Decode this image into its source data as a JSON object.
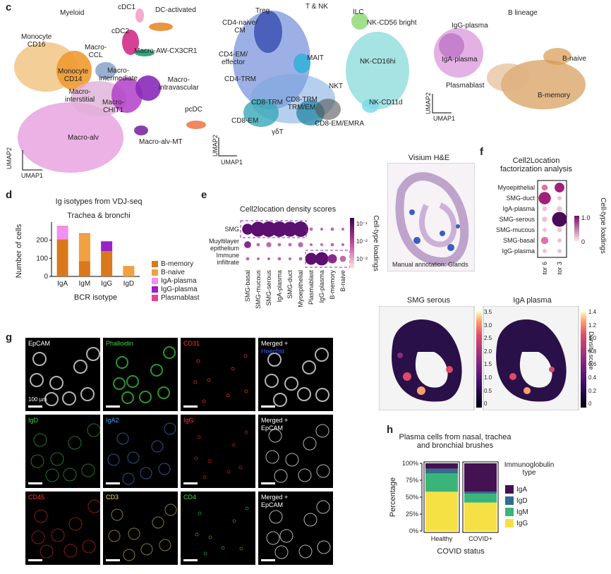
{
  "panel_c": {
    "letter": "c",
    "myeloid": {
      "title": "Myeloid",
      "labels": [
        "cDC1",
        "DC-activated",
        "cDC2",
        "Monocyte\nCD16",
        "Macro-\nCCL",
        "Macro-AW-CX3CR1",
        "Monocyte\nCD14",
        "Macro-\nintermediate",
        "Macro-\nintravascular",
        "Macro-\ninterstitial",
        "Macro-\nCHIT1",
        "pcDC",
        "Macro-alv",
        "Macro-alv-MT"
      ],
      "axis_x": "UMAP1",
      "axis_y": "UMAP2"
    },
    "tnk": {
      "title": "T & NK",
      "labels": [
        "Treg",
        "ILC",
        "CD4-naive/\nCM",
        "NK-CD56 bright",
        "CD4-EM/\neffector",
        "MAIT",
        "NK-CD16hi",
        "CD4-TRM",
        "NKT",
        "CD8-TRM",
        "CD8-TRM\nTRM/EM",
        "NK-CD11d",
        "CD8-EM",
        "γδT",
        "CD8-EM/EMRA"
      ],
      "axis_x": "UMAP1",
      "axis_y": "UMAP2"
    },
    "blineage": {
      "title": "B lineage",
      "labels": [
        "IgG-plasma",
        "IgA-plasma",
        "B-naive",
        "Plasmablast",
        "B-memory"
      ],
      "axis_x": "UMAP1",
      "axis_y": "UMAP2"
    }
  },
  "panel_d": {
    "letter": "d",
    "chart_data": {
      "type": "bar",
      "title": "Ig isotypes from VDJ-seq",
      "subtitle": "Trachea & bronchi",
      "xlabel": "BCR isotype",
      "ylabel": "Number of cells",
      "categories": [
        "IgA",
        "IgM",
        "IgG",
        "IgD"
      ],
      "ylim": [
        0,
        280
      ],
      "yticks": [
        0,
        100,
        200
      ],
      "series": [
        {
          "name": "B-memory",
          "color": "#d9791c",
          "values": [
            205,
            85,
            140,
            0
          ]
        },
        {
          "name": "B-naive",
          "color": "#f0a142",
          "values": [
            0,
            150,
            0,
            58
          ]
        },
        {
          "name": "IgA-plasma",
          "color": "#f38ff0",
          "values": [
            70,
            0,
            0,
            0
          ]
        },
        {
          "name": "IgG-plasma",
          "color": "#9a20c9",
          "values": [
            0,
            0,
            52,
            0
          ]
        },
        {
          "name": "Plasmablast",
          "color": "#e0439b",
          "values": [
            3,
            3,
            3,
            0
          ]
        }
      ]
    }
  },
  "panel_e": {
    "letter": "e",
    "chart_data": {
      "type": "dotplot",
      "title": "Cell2location density scores",
      "rows": [
        "SMG",
        "Muyltilayer\nepithelium",
        "Immune\ninfiltrate"
      ],
      "columns": [
        "SMG-basal",
        "SMG-mucous",
        "SMG-serous",
        "IgA-plasma",
        "SMG-duct",
        "Myoepithelial",
        "Plasmablast",
        "IgG-plasma",
        "B-memory",
        "B-naive"
      ],
      "values": [
        [
          0.02,
          0.1,
          0.12,
          0.12,
          0.1,
          0.12,
          0.001,
          0.0008,
          0.001,
          0.0008
        ],
        [
          0.004,
          0.001,
          0.002,
          0.001,
          0.001,
          0.002,
          0.0008,
          0.0008,
          0.001,
          0.0008
        ],
        [
          0.001,
          0.0008,
          0.0008,
          0.001,
          0.0008,
          0.001,
          0.03,
          0.05,
          0.01,
          0.003
        ]
      ],
      "colorbar": {
        "label": "Cell-type loadings",
        "ticks": [
          "10⁻¹",
          "10⁻²",
          "10⁻³"
        ]
      }
    }
  },
  "panel_visium": {
    "title": "Visium H&E",
    "caption": "Manual annotation: Glands"
  },
  "panel_f": {
    "letter": "f",
    "chart_data": {
      "type": "dotplot",
      "title": "Cell2Location\nfactorization analysis",
      "rows": [
        "Myoepithelial",
        "SMG-duct",
        "IgA-plasma",
        "SMG-serous",
        "SMG-mucous",
        "SMG-basal",
        "IgG-plasma"
      ],
      "columns": [
        "Factor 6",
        "Factor 3"
      ],
      "values": [
        [
          0.25,
          0.55
        ],
        [
          0.75,
          0.12
        ],
        [
          0.15,
          0.2
        ],
        [
          0.2,
          0.95
        ],
        [
          0.1,
          0.15
        ],
        [
          0.35,
          0.12
        ],
        [
          0.1,
          0.1
        ]
      ],
      "colorbar": {
        "label": "Cell-type loadings",
        "ticks": [
          "1.0",
          "0"
        ]
      }
    }
  },
  "panel_maps": {
    "smg": {
      "title": "SMG serous",
      "ticks": [
        "3.5",
        "3.0",
        "2.5",
        "2.0",
        "1.5",
        "1.0",
        "0.5",
        "0"
      ]
    },
    "iga": {
      "title": "IgA plasma",
      "ticks": [
        "1.4",
        "1.2",
        "1.0",
        "0.8",
        "0.6",
        "0.4",
        "0.2",
        "0"
      ],
      "colorbar_label": "Density score"
    }
  },
  "panel_g": {
    "letter": "g",
    "tiles": [
      {
        "label": "EpCAM",
        "color": "#ffffff",
        "scalebar": "100 µm"
      },
      {
        "label": "Phalloidin",
        "color": "#3fd63f"
      },
      {
        "label": "CD31",
        "color": "#ff3030"
      },
      {
        "label": "Merged +",
        "label2": "Hoechst",
        "color": "#ffffff",
        "color2": "#3a5bff"
      },
      {
        "label": "IgD",
        "color": "#3fd63f"
      },
      {
        "label": "IgA2",
        "color": "#3aa3ff"
      },
      {
        "label": "IgG",
        "color": "#ff3030"
      },
      {
        "label": "Merged +",
        "label2": "EpCAM",
        "color": "#ffffff",
        "color2": "#ffffff"
      },
      {
        "label": "CD45",
        "color": "#ff3030"
      },
      {
        "label": "CD3",
        "color": "#f2e04a"
      },
      {
        "label": "CD4",
        "color": "#3fd63f"
      },
      {
        "label": "Merged +",
        "label2": "EpCAM",
        "color": "#ffffff",
        "color2": "#ffffff"
      }
    ]
  },
  "panel_h": {
    "letter": "h",
    "chart_data": {
      "type": "bar",
      "title": "Plasma cells from nasal, trachea\nand bronchial brushes",
      "xlabel": "COVID status",
      "ylabel": "Percentage",
      "categories": [
        "Healthy",
        "COVID+"
      ],
      "yticks": [
        "0%",
        "25%",
        "50%",
        "75%",
        "100%"
      ],
      "legend_title": "Immunoglobulin\ntype",
      "series": [
        {
          "name": "IgG",
          "color": "#f6e145",
          "values": [
            58,
            42
          ]
        },
        {
          "name": "IgM",
          "color": "#3ab57a",
          "values": [
            27,
            13
          ]
        },
        {
          "name": "IgD",
          "color": "#2f6e8e",
          "values": [
            7,
            3
          ]
        },
        {
          "name": "IgA",
          "color": "#441152",
          "values": [
            8,
            42
          ]
        }
      ]
    }
  }
}
